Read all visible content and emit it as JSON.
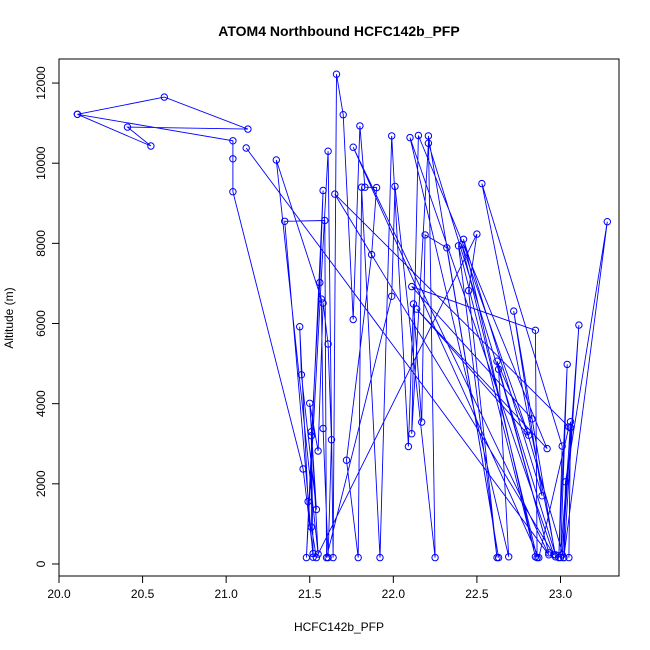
{
  "chart_data": {
    "type": "line",
    "title": "ATOM4 Northbound HCFC142b_PFP",
    "xlabel": "HCFC142b_PFP",
    "ylabel": "Altitude (m)",
    "xlim": [
      20.0,
      23.35
    ],
    "ylim": [
      -300,
      12600
    ],
    "x_ticks": [
      20.0,
      20.5,
      21.0,
      21.5,
      22.0,
      22.5,
      23.0
    ],
    "x_tick_labels": [
      "20.0",
      "20.5",
      "21.0",
      "21.5",
      "22.0",
      "22.5",
      "23.0"
    ],
    "y_ticks": [
      0,
      2000,
      4000,
      6000,
      8000,
      10000,
      12000
    ],
    "y_tick_labels": [
      "0",
      "2000",
      "4000",
      "6000",
      "8000",
      "10000",
      "12000"
    ],
    "marker": "open-circle",
    "grid": false,
    "colors": {
      "series": "#0000ff",
      "axis": "#000000",
      "background": "#ffffff"
    },
    "series": [
      {
        "points": [
          [
            20.11,
            11220
          ],
          [
            20.63,
            11650
          ],
          [
            21.13,
            10850
          ],
          [
            20.41,
            10900
          ],
          [
            20.55,
            10430
          ],
          [
            20.11,
            11220
          ],
          [
            21.04,
            10560
          ],
          [
            21.04,
            10110
          ],
          [
            21.04,
            9290
          ],
          [
            21.46,
            2370
          ],
          [
            21.52,
            260
          ],
          [
            21.51,
            3200
          ],
          [
            21.56,
            7020
          ],
          [
            21.58,
            9320
          ],
          [
            21.48,
            160
          ],
          [
            21.61,
            10300
          ],
          [
            21.64,
            160
          ],
          [
            21.66,
            12220
          ],
          [
            21.7,
            11210
          ],
          [
            21.76,
            6100
          ],
          [
            21.8,
            10930
          ],
          [
            21.83,
            9400
          ],
          [
            21.9,
            9390
          ],
          [
            21.87,
            7720
          ],
          [
            21.72,
            2590
          ],
          [
            21.79,
            160
          ],
          [
            21.81,
            9400
          ],
          [
            21.92,
            160
          ],
          [
            21.99,
            10680
          ],
          [
            22.09,
            2930
          ],
          [
            22.12,
            6490
          ],
          [
            22.17,
            3540
          ],
          [
            22.19,
            8210
          ],
          [
            22.32,
            7890
          ],
          [
            22.63,
            160
          ],
          [
            22.21,
            10680
          ],
          [
            22.25,
            160
          ],
          [
            22.01,
            9420
          ],
          [
            21.99,
            6680
          ],
          [
            21.6,
            160
          ],
          [
            21.59,
            8570
          ],
          [
            21.35,
            8550
          ],
          [
            21.52,
            170
          ],
          [
            21.49,
            1560
          ],
          [
            21.44,
            5920
          ],
          [
            21.45,
            4720
          ],
          [
            21.54,
            1360
          ],
          [
            21.5,
            4010
          ],
          [
            21.55,
            2820
          ],
          [
            21.58,
            6510
          ],
          [
            21.61,
            5490
          ],
          [
            21.63,
            3100
          ],
          [
            21.61,
            160
          ],
          [
            21.58,
            3380
          ],
          [
            21.57,
            6610
          ],
          [
            21.3,
            10080
          ],
          [
            21.55,
            250
          ],
          [
            21.51,
            3300
          ],
          [
            21.51,
            920
          ],
          [
            21.54,
            160
          ],
          [
            22.5,
            8230
          ],
          [
            22.45,
            6820
          ],
          [
            22.62,
            160
          ],
          [
            22.39,
            7940
          ],
          [
            22.85,
            180
          ],
          [
            22.42,
            8100
          ],
          [
            22.89,
            1700
          ],
          [
            22.72,
            6310
          ],
          [
            22.97,
            180
          ],
          [
            22.83,
            3620
          ],
          [
            22.11,
            6920
          ],
          [
            22.85,
            5830
          ],
          [
            22.86,
            160
          ],
          [
            22.41,
            7970
          ],
          [
            22.81,
            3210
          ],
          [
            22.14,
            6360
          ],
          [
            22.92,
            2880
          ],
          [
            22.15,
            10690
          ],
          [
            22.11,
            3250
          ],
          [
            22.21,
            10500
          ],
          [
            22.97,
            230
          ],
          [
            22.53,
            9490
          ],
          [
            23.01,
            2940
          ],
          [
            22.99,
            160
          ],
          [
            23.04,
            4980
          ],
          [
            23.0,
            160
          ],
          [
            23.06,
            3400
          ],
          [
            23.05,
            160
          ],
          [
            23.06,
            3550
          ],
          [
            23.01,
            230
          ],
          [
            23.11,
            5960
          ],
          [
            23.02,
            160
          ],
          [
            23.28,
            8540
          ],
          [
            23.03,
            2050
          ],
          [
            23.02,
            160
          ],
          [
            22.8,
            3300
          ],
          [
            22.62,
            5060
          ],
          [
            22.93,
            280
          ],
          [
            22.63,
            4860
          ],
          [
            22.69,
            180
          ],
          [
            22.1,
            10640
          ],
          [
            22.96,
            230
          ],
          [
            21.65,
            9230
          ],
          [
            23.05,
            3420
          ],
          [
            22.87,
            160
          ],
          [
            21.76,
            10400
          ],
          [
            22.93,
            230
          ],
          [
            21.12,
            10380
          ]
        ]
      }
    ]
  }
}
